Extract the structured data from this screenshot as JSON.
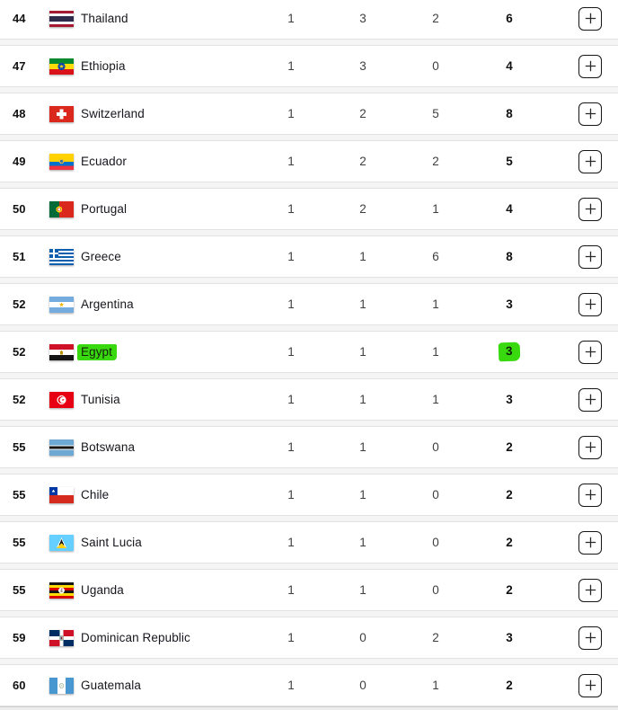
{
  "theme": {
    "highlight_green": "#38d90e",
    "row_background": "#ffffff",
    "row_border": "#e2e2e2",
    "page_background": "#f5f5f5",
    "rank_text": "#111111",
    "country_text": "#16161d",
    "number_text": "#3f3f3f",
    "total_text": "#101010"
  },
  "table": {
    "columns": [
      "rank",
      "flag",
      "country",
      "gold",
      "silver",
      "bronze",
      "total",
      "expand"
    ],
    "expand_icon": "plus-icon",
    "rows": [
      {
        "rank": "44",
        "country": "Thailand",
        "flag": "TH",
        "gold": "1",
        "silver": "3",
        "bronze": "2",
        "total": "6",
        "highlighted": false
      },
      {
        "rank": "47",
        "country": "Ethiopia",
        "flag": "ET",
        "gold": "1",
        "silver": "3",
        "bronze": "0",
        "total": "4",
        "highlighted": false
      },
      {
        "rank": "48",
        "country": "Switzerland",
        "flag": "CH",
        "gold": "1",
        "silver": "2",
        "bronze": "5",
        "total": "8",
        "highlighted": false
      },
      {
        "rank": "49",
        "country": "Ecuador",
        "flag": "EC",
        "gold": "1",
        "silver": "2",
        "bronze": "2",
        "total": "5",
        "highlighted": false
      },
      {
        "rank": "50",
        "country": "Portugal",
        "flag": "PT",
        "gold": "1",
        "silver": "2",
        "bronze": "1",
        "total": "4",
        "highlighted": false
      },
      {
        "rank": "51",
        "country": "Greece",
        "flag": "GR",
        "gold": "1",
        "silver": "1",
        "bronze": "6",
        "total": "8",
        "highlighted": false
      },
      {
        "rank": "52",
        "country": "Argentina",
        "flag": "AR",
        "gold": "1",
        "silver": "1",
        "bronze": "1",
        "total": "3",
        "highlighted": false
      },
      {
        "rank": "52",
        "country": "Egypt",
        "flag": "EG",
        "gold": "1",
        "silver": "1",
        "bronze": "1",
        "total": "3",
        "highlighted": true
      },
      {
        "rank": "52",
        "country": "Tunisia",
        "flag": "TN",
        "gold": "1",
        "silver": "1",
        "bronze": "1",
        "total": "3",
        "highlighted": false
      },
      {
        "rank": "55",
        "country": "Botswana",
        "flag": "BW",
        "gold": "1",
        "silver": "1",
        "bronze": "0",
        "total": "2",
        "highlighted": false
      },
      {
        "rank": "55",
        "country": "Chile",
        "flag": "CL",
        "gold": "1",
        "silver": "1",
        "bronze": "0",
        "total": "2",
        "highlighted": false
      },
      {
        "rank": "55",
        "country": "Saint Lucia",
        "flag": "LC",
        "gold": "1",
        "silver": "1",
        "bronze": "0",
        "total": "2",
        "highlighted": false
      },
      {
        "rank": "55",
        "country": "Uganda",
        "flag": "UG",
        "gold": "1",
        "silver": "1",
        "bronze": "0",
        "total": "2",
        "highlighted": false
      },
      {
        "rank": "59",
        "country": "Dominican Republic",
        "flag": "DO",
        "gold": "1",
        "silver": "0",
        "bronze": "2",
        "total": "3",
        "highlighted": false
      },
      {
        "rank": "60",
        "country": "Guatemala",
        "flag": "GT",
        "gold": "1",
        "silver": "0",
        "bronze": "1",
        "total": "2",
        "highlighted": false
      }
    ]
  }
}
